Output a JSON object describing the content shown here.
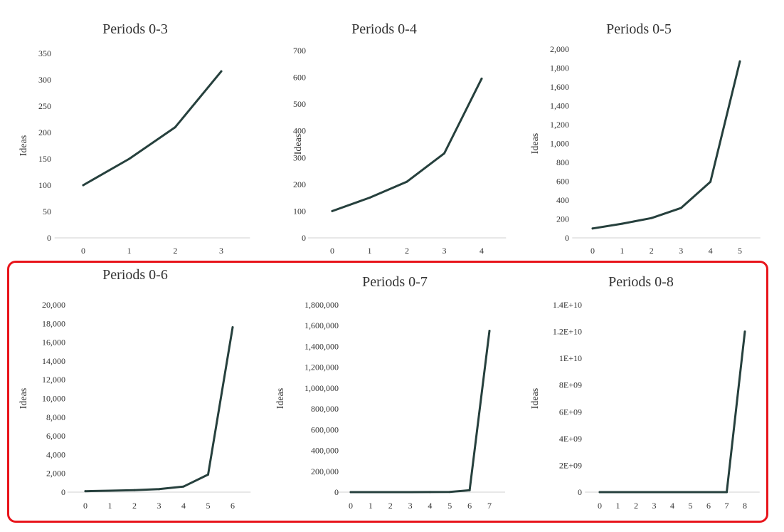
{
  "highlight_color": "#e8141b",
  "line_color": "#26403d",
  "chart_data": [
    {
      "type": "line",
      "title": "Periods 0-3",
      "ylabel": "Ideas",
      "xlabel": "",
      "x": [
        0,
        1,
        2,
        3
      ],
      "y": [
        100,
        150,
        210,
        316
      ],
      "ylim": [
        0,
        350
      ],
      "y_ticks": [
        0,
        50,
        100,
        150,
        200,
        250,
        300,
        350
      ],
      "y_tick_labels": [
        "0",
        "50",
        "100",
        "150",
        "200",
        "250",
        "300",
        "350"
      ],
      "grid": false
    },
    {
      "type": "line",
      "title": "Periods 0-4",
      "ylabel": "Ideas",
      "xlabel": "",
      "x": [
        0,
        1,
        2,
        3,
        4
      ],
      "y": [
        100,
        150,
        210,
        316,
        595
      ],
      "ylim": [
        0,
        700
      ],
      "y_ticks": [
        0,
        100,
        200,
        300,
        400,
        500,
        600,
        700
      ],
      "y_tick_labels": [
        "0",
        "100",
        "200",
        "300",
        "400",
        "500",
        "600",
        "700"
      ],
      "grid": false
    },
    {
      "type": "line",
      "title": "Periods 0-5",
      "ylabel": "Ideas",
      "xlabel": "",
      "x": [
        0,
        1,
        2,
        3,
        4,
        5
      ],
      "y": [
        100,
        150,
        210,
        316,
        595,
        1870
      ],
      "ylim": [
        0,
        2000
      ],
      "y_ticks": [
        0,
        200,
        400,
        600,
        800,
        1000,
        1200,
        1400,
        1600,
        1800,
        2000
      ],
      "y_tick_labels": [
        "0",
        "200",
        "400",
        "600",
        "800",
        "1,000",
        "1,200",
        "1,400",
        "1,600",
        "1,800",
        "2,000"
      ],
      "grid": false
    },
    {
      "type": "line",
      "title": "Periods 0-6",
      "ylabel": "Ideas",
      "xlabel": "",
      "x": [
        0,
        1,
        2,
        3,
        4,
        5,
        6
      ],
      "y": [
        100,
        150,
        210,
        316,
        595,
        1870,
        17600
      ],
      "ylim": [
        0,
        20000
      ],
      "y_ticks": [
        0,
        2000,
        4000,
        6000,
        8000,
        10000,
        12000,
        14000,
        16000,
        18000,
        20000
      ],
      "y_tick_labels": [
        "0",
        "2,000",
        "4,000",
        "6,000",
        "8,000",
        "10,000",
        "12,000",
        "14,000",
        "16,000",
        "18,000",
        "20,000"
      ],
      "grid": false
    },
    {
      "type": "line",
      "title": "Periods 0-7",
      "ylabel": "Ideas",
      "xlabel": "",
      "x": [
        0,
        1,
        2,
        3,
        4,
        5,
        6,
        7
      ],
      "y": [
        100,
        150,
        210,
        316,
        595,
        1870,
        17600,
        1550000
      ],
      "ylim": [
        0,
        1800000
      ],
      "y_ticks": [
        0,
        200000,
        400000,
        600000,
        800000,
        1000000,
        1200000,
        1400000,
        1600000,
        1800000
      ],
      "y_tick_labels": [
        "0",
        "200,000",
        "400,000",
        "600,000",
        "800,000",
        "1,000,000",
        "1,200,000",
        "1,400,000",
        "1,600,000",
        "1,800,000"
      ],
      "grid": false
    },
    {
      "type": "line",
      "title": "Periods 0-8",
      "ylabel": "Ideas",
      "xlabel": "",
      "x": [
        0,
        1,
        2,
        3,
        4,
        5,
        6,
        7,
        8
      ],
      "y": [
        100,
        150,
        210,
        316,
        595,
        1870,
        17600,
        1550000,
        12000000000
      ],
      "ylim": [
        0,
        14000000000
      ],
      "y_ticks": [
        0,
        2000000000,
        4000000000,
        6000000000,
        8000000000,
        10000000000,
        12000000000,
        14000000000
      ],
      "y_tick_labels": [
        "0",
        "2E+09",
        "4E+09",
        "6E+09",
        "8E+09",
        "1E+10",
        "1.2E+10",
        "1.4E+10"
      ],
      "grid": false
    }
  ]
}
